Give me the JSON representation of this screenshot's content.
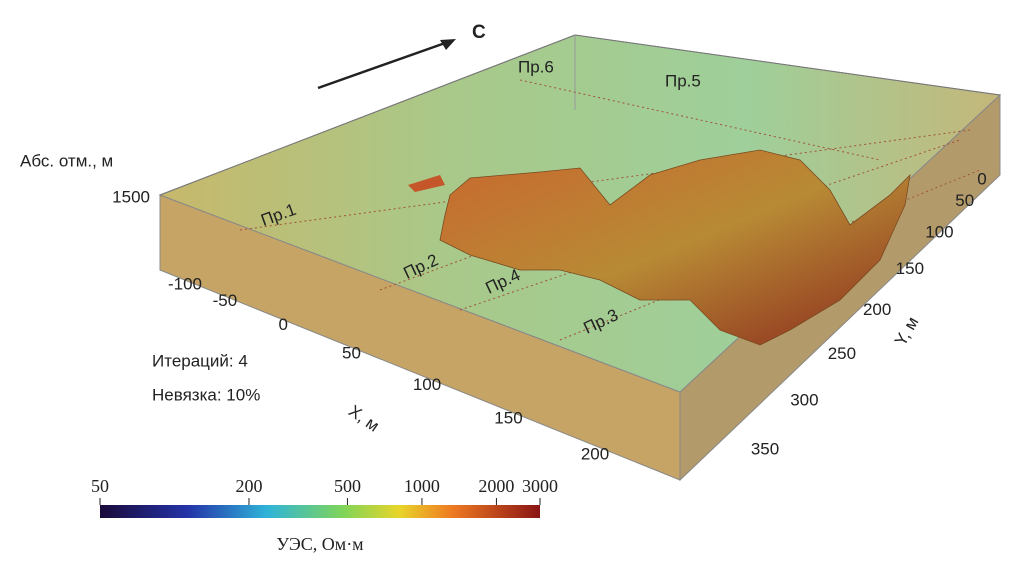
{
  "north_label": "С",
  "vertical_axis": {
    "label": "Абс. отм., м",
    "ticks": [
      1500
    ]
  },
  "x_axis": {
    "label": "X, м",
    "ticks": [
      -100,
      -50,
      0,
      50,
      100,
      150,
      200
    ]
  },
  "y_axis": {
    "label": "Y, м",
    "ticks": [
      0,
      50,
      100,
      150,
      200,
      250,
      300,
      350
    ]
  },
  "profiles": [
    "Пр.1",
    "Пр.2",
    "Пр.3",
    "Пр.4",
    "Пр.5",
    "Пр.6"
  ],
  "annotations": [
    "Итераций: 4",
    "Невязка: 10%"
  ],
  "colorbar": {
    "label": "УЭС, Ом·м",
    "scale": "log",
    "lim": [
      50,
      3000
    ],
    "ticks": [
      50,
      200,
      500,
      1000,
      2000,
      3000
    ]
  }
}
